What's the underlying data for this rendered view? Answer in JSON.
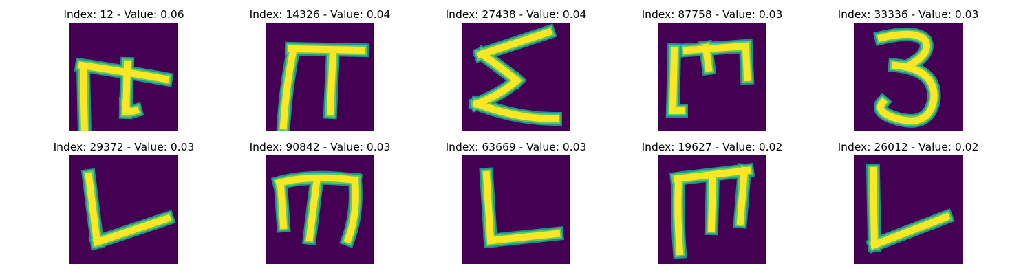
{
  "colors": {
    "background": "#440154",
    "edge_inner": "#fde725",
    "edge_mid": "#5ec962",
    "edge_outer": "#21918c"
  },
  "panels": [
    {
      "index": "12",
      "value": "0.06",
      "title": "Index: 12 - Value: 0.06",
      "glyph": "pi-hook"
    },
    {
      "index": "14326",
      "value": "0.04",
      "title": "Index: 14326 - Value: 0.04",
      "glyph": "pi"
    },
    {
      "index": "27438",
      "value": "0.04",
      "title": "Index: 27438 - Value: 0.04",
      "glyph": "sigma"
    },
    {
      "index": "87758",
      "value": "0.03",
      "title": "Index: 87758 - Value: 0.03",
      "glyph": "m-bracket"
    },
    {
      "index": "33336",
      "value": "0.03",
      "title": "Index: 33336 - Value: 0.03",
      "glyph": "three"
    },
    {
      "index": "29372",
      "value": "0.03",
      "title": "Index: 29372 - Value: 0.03",
      "glyph": "l-slant"
    },
    {
      "index": "90842",
      "value": "0.03",
      "title": "Index: 90842 - Value: 0.03",
      "glyph": "m-curl"
    },
    {
      "index": "63669",
      "value": "0.03",
      "title": "Index: 63669 - Value: 0.03",
      "glyph": "l-flat"
    },
    {
      "index": "19627",
      "value": "0.02",
      "title": "Index: 19627 - Value: 0.02",
      "glyph": "m-bold"
    },
    {
      "index": "26012",
      "value": "0.02",
      "title": "Index: 26012 - Value: 0.02",
      "glyph": "v-check"
    }
  ]
}
